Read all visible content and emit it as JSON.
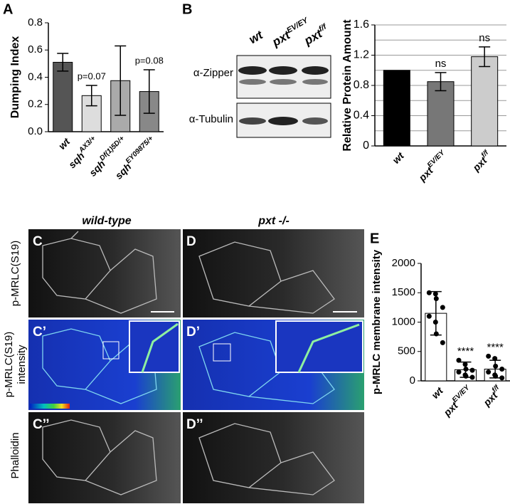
{
  "chart_data": [
    {
      "type": "bar",
      "y_label": "Dumping Index",
      "categories": [
        "wt",
        "sqh",
        "sqh",
        "sqh"
      ],
      "category_sups": [
        null,
        "AX3/+",
        "Df(1)5D/+",
        "EY09875/+"
      ],
      "values": [
        0.51,
        0.265,
        0.375,
        0.295
      ],
      "errors": [
        0.065,
        0.075,
        0.255,
        0.16
      ],
      "colors": [
        "#555555",
        "#dddddd",
        "#aaaaaa",
        "#888888"
      ],
      "annotations": [
        null,
        "p=0.07",
        null,
        "p=0.08"
      ],
      "ylim": [
        0,
        0.8
      ],
      "yticks": [
        {
          "value": 0,
          "label": "0.0"
        },
        0.2,
        0.4,
        0.6,
        0.8
      ],
      "grid": false
    },
    {
      "type": "bar",
      "y_label": "Relative Protein Amount",
      "categories": [
        "wt",
        "pxt",
        "pxt"
      ],
      "category_sups": [
        null,
        "EV/EY",
        "f/f"
      ],
      "values": [
        1.0,
        0.85,
        1.18
      ],
      "errors": [
        0,
        0.12,
        0.13
      ],
      "colors": [
        "#000000",
        "#777777",
        "#cccccc"
      ],
      "annotations": [
        null,
        "ns",
        "ns"
      ],
      "ylim": [
        0,
        1.6
      ],
      "yticks": [
        0,
        0.4,
        0.8,
        1.2,
        1.6
      ],
      "minor_yticks": [
        0.2,
        0.6,
        1.0,
        1.4
      ],
      "grid": true
    },
    {
      "type": "bar",
      "y_label": "p-MRLC membrane intensity",
      "categories": [
        "wt",
        "pxt",
        "pxt"
      ],
      "category_sups": [
        null,
        "EV/EY",
        "f/f"
      ],
      "values": [
        1150,
        190,
        200
      ],
      "errors": [
        370,
        130,
        150
      ],
      "colors": [
        "#ffffff",
        "#ffffff",
        "#ffffff"
      ],
      "points": [
        [
          1500,
          1480,
          1400,
          1250,
          1100,
          1000,
          800,
          650
        ],
        [
          350,
          280,
          200,
          180,
          150,
          100,
          80,
          60
        ],
        [
          420,
          380,
          250,
          200,
          150,
          100,
          80,
          50
        ]
      ],
      "annotations": [
        null,
        "****",
        "****"
      ],
      "ylim": [
        0,
        2000
      ],
      "yticks": [
        0,
        500,
        1000,
        1500,
        2000
      ],
      "grid": false
    }
  ],
  "panel_labels": {
    "a": "A",
    "b": "B",
    "e": "E"
  },
  "blot": {
    "columns": [
      "wt",
      "pxt",
      "pxt"
    ],
    "column_sups": [
      null,
      "EV/EY",
      "f/f"
    ],
    "rows": [
      "α-Zipper",
      "α-Tubulin"
    ]
  },
  "microscopy": {
    "columns": [
      "wild-type",
      "pxt -/-"
    ],
    "rows": [
      "p-MRLC(S19)",
      "p-MRLC(S19)",
      "intensity",
      "Phalloidin"
    ],
    "panels": [
      "C",
      "D",
      "C’",
      "D’",
      "C’’",
      "D’’"
    ]
  }
}
